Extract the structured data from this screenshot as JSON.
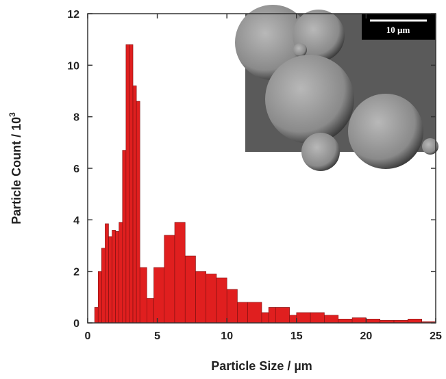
{
  "chart_data": {
    "type": "histogram",
    "x_label": "Particle Size / µm",
    "y_label": "Particle Count / 10",
    "y_label_exponent": "3",
    "inset_scale_label": "10 µm",
    "color": "#e01f1f",
    "bins": [
      0.5,
      0.75,
      1,
      1.25,
      1.5,
      1.75,
      2,
      2.25,
      2.5,
      2.75,
      3,
      3.25,
      3.5,
      3.75,
      4.25,
      4.75,
      5.5,
      6.25,
      7,
      7.75,
      8.5,
      9.25,
      10,
      10.75,
      11.5,
      12.5,
      13,
      13.5,
      14.5,
      15,
      16,
      17,
      18,
      19,
      20,
      21,
      22,
      23,
      24,
      25
    ],
    "counts": [
      0.6,
      2.0,
      2.9,
      3.85,
      3.35,
      3.6,
      3.55,
      3.9,
      6.7,
      10.8,
      10.8,
      9.2,
      8.6,
      2.15,
      0.95,
      2.15,
      3.4,
      3.9,
      2.6,
      2.0,
      1.9,
      1.75,
      1.3,
      0.8,
      0.8,
      0.4,
      0.6,
      0.6,
      0.3,
      0.4,
      0.4,
      0.3,
      0.15,
      0.2,
      0.15,
      0.1,
      0.1,
      0.15,
      0.05
    ],
    "xlim": [
      0,
      25
    ],
    "xticks": [
      0,
      5,
      10,
      15,
      20,
      25
    ],
    "ylim": [
      0,
      12
    ],
    "yticks": [
      0,
      2,
      4,
      6,
      8,
      10,
      12
    ]
  }
}
